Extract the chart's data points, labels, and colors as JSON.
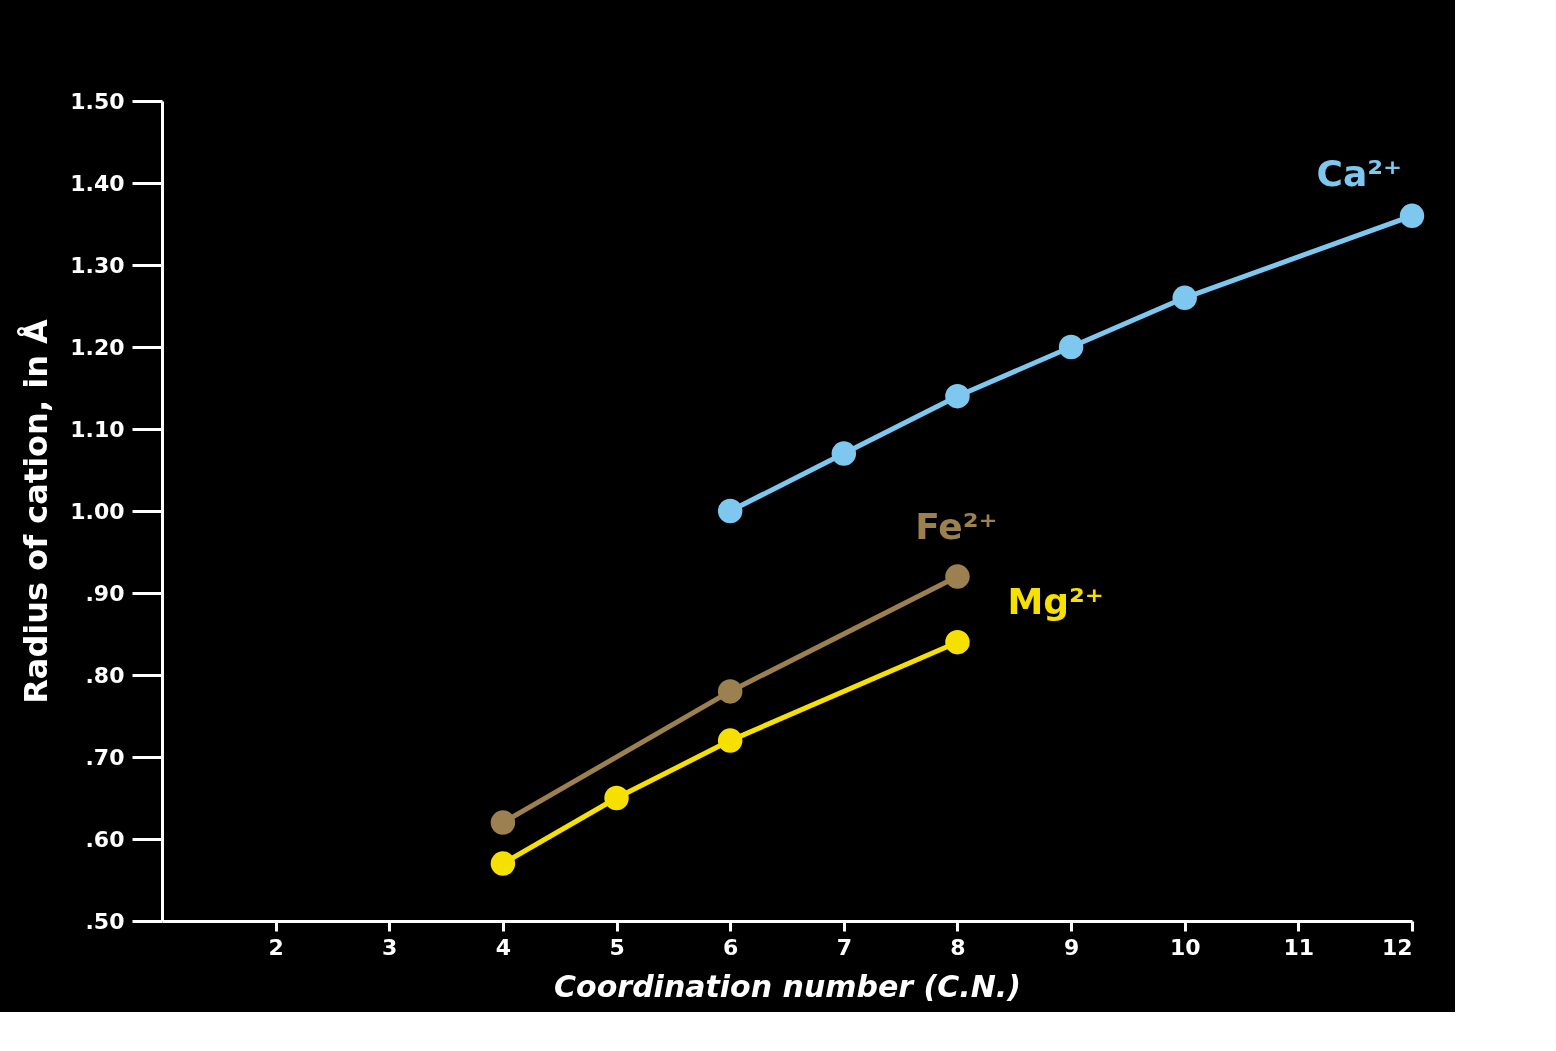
{
  "chart_data": {
    "type": "line",
    "xlabel": "Coordination number (C.N.)",
    "ylabel": "Radius of cation, in Å",
    "xlim": [
      1,
      12
    ],
    "xticks": [
      2,
      3,
      4,
      5,
      6,
      7,
      8,
      9,
      10,
      11,
      12
    ],
    "ylim": [
      0.5,
      1.5
    ],
    "yticks": [
      {
        "value": 0.5,
        "label": ".50"
      },
      {
        "value": 0.6,
        "label": ".60"
      },
      {
        "value": 0.7,
        "label": ".70"
      },
      {
        "value": 0.8,
        "label": ".80"
      },
      {
        "value": 0.9,
        "label": ".90"
      },
      {
        "value": 1.0,
        "label": "1.00"
      },
      {
        "value": 1.1,
        "label": "1.10"
      },
      {
        "value": 1.2,
        "label": "1.20"
      },
      {
        "value": 1.3,
        "label": "1.30"
      },
      {
        "value": 1.4,
        "label": "1.40"
      },
      {
        "value": 1.5,
        "label": "1.50"
      }
    ],
    "grid": false,
    "marker": "circle",
    "line_style": "solid",
    "series": [
      {
        "name": "Ca²⁺",
        "color": "#7ec8f0",
        "x": [
          6,
          7,
          8,
          9,
          10,
          12
        ],
        "values": [
          1.0,
          1.07,
          1.14,
          1.2,
          1.26,
          1.36
        ]
      },
      {
        "name": "Fe²⁺",
        "color": "#9c8050",
        "x": [
          4,
          6,
          8
        ],
        "values": [
          0.62,
          0.78,
          0.92
        ]
      },
      {
        "name": "Mg²⁺",
        "color": "#f5e000",
        "x": [
          4,
          5,
          6,
          8
        ],
        "values": [
          0.57,
          0.65,
          0.72,
          0.84
        ]
      }
    ]
  }
}
